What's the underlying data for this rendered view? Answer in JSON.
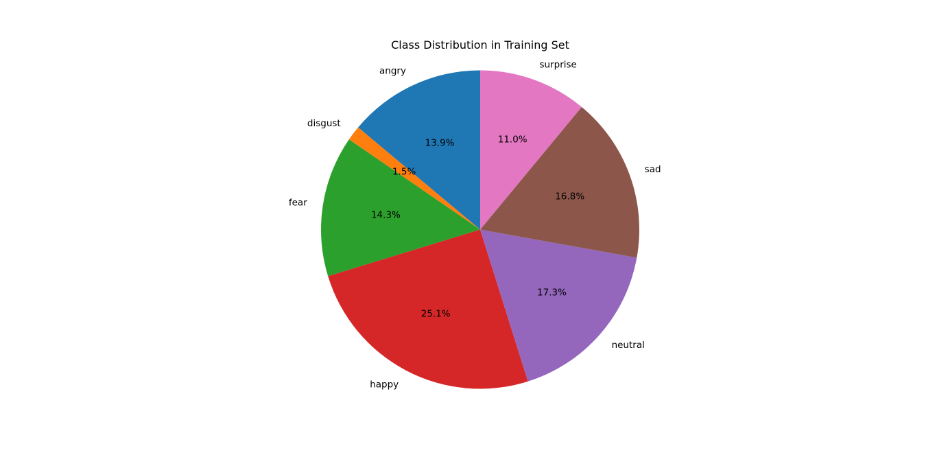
{
  "chart_data": {
    "type": "pie",
    "title": "Class Distribution in Training Set",
    "start_angle_deg": 90,
    "direction": "counterclockwise",
    "slices": [
      {
        "label": "angry",
        "value": 13.9,
        "percent_label": "13.9%",
        "color": "#1f77b4"
      },
      {
        "label": "disgust",
        "value": 1.5,
        "percent_label": "1.5%",
        "color": "#ff7f0e"
      },
      {
        "label": "fear",
        "value": 14.3,
        "percent_label": "14.3%",
        "color": "#2ca02c"
      },
      {
        "label": "happy",
        "value": 25.1,
        "percent_label": "25.1%",
        "color": "#d62728"
      },
      {
        "label": "neutral",
        "value": 17.3,
        "percent_label": "17.3%",
        "color": "#9467bd"
      },
      {
        "label": "sad",
        "value": 16.8,
        "percent_label": "16.8%",
        "color": "#8c564b"
      },
      {
        "label": "surprise",
        "value": 11.0,
        "percent_label": "11.0%",
        "color": "#e377c2"
      }
    ]
  }
}
